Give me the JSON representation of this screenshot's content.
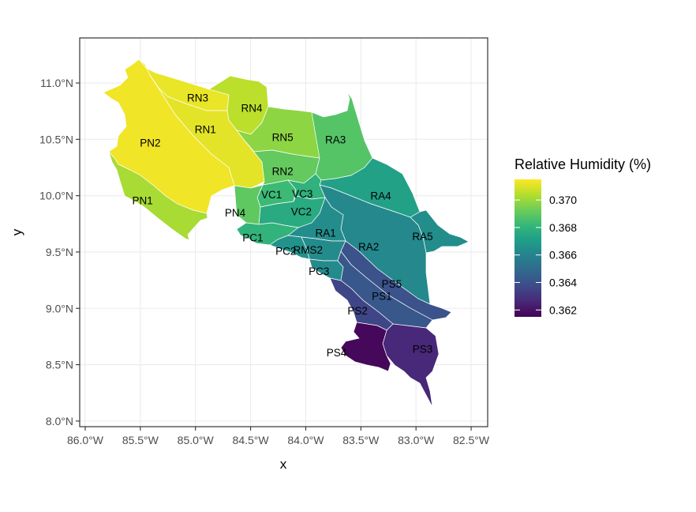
{
  "chart_data": {
    "type": "choropleth-map",
    "xlabel": "x",
    "ylabel": "y",
    "x_ticks": [
      "86.0°W",
      "85.5°W",
      "85.0°W",
      "84.5°W",
      "84.0°W",
      "83.5°W",
      "83.0°W",
      "82.5°W"
    ],
    "y_ticks": [
      "8.0°N",
      "8.5°N",
      "9.0°N",
      "9.5°N",
      "10.0°N",
      "10.5°N",
      "11.0°N"
    ],
    "x_tick_values": [
      -86.0,
      -85.5,
      -85.0,
      -84.5,
      -84.0,
      -83.5,
      -83.0,
      -82.5
    ],
    "y_tick_values": [
      8.0,
      8.5,
      9.0,
      9.5,
      10.0,
      10.5,
      11.0
    ],
    "xlim": [
      -86.05,
      -82.35
    ],
    "ylim": [
      7.95,
      11.4
    ],
    "grid": true,
    "legend": {
      "title": "Relative Humidity (%)",
      "position": "right",
      "range": [
        0.3615,
        0.3715
      ],
      "ticks": [
        "0.362",
        "0.364",
        "0.366",
        "0.368",
        "0.370"
      ],
      "tick_values": [
        0.362,
        0.364,
        0.366,
        0.368,
        0.37
      ],
      "palette": [
        "#440154",
        "#482878",
        "#3E4A89",
        "#31688E",
        "#26828E",
        "#1F9E89",
        "#35B779",
        "#6DCD59",
        "#B4DE2C",
        "#FDE725"
      ]
    },
    "regions": [
      {
        "name": "PN1",
        "value": 0.3702,
        "label_lon": -85.48,
        "label_lat": 9.96
      },
      {
        "name": "PN2",
        "value": 0.3713,
        "label_lon": -85.41,
        "label_lat": 10.47
      },
      {
        "name": "RN3",
        "value": 0.3712,
        "label_lon": -84.98,
        "label_lat": 10.87
      },
      {
        "name": "RN1",
        "value": 0.3711,
        "label_lon": -84.91,
        "label_lat": 10.59
      },
      {
        "name": "RN4",
        "value": 0.3705,
        "label_lon": -84.49,
        "label_lat": 10.78
      },
      {
        "name": "RN5",
        "value": 0.3698,
        "label_lon": -84.21,
        "label_lat": 10.52
      },
      {
        "name": "RN2",
        "value": 0.3691,
        "label_lon": -84.21,
        "label_lat": 10.22
      },
      {
        "name": "RA3",
        "value": 0.3688,
        "label_lon": -83.73,
        "label_lat": 10.5
      },
      {
        "name": "RA4",
        "value": 0.3672,
        "label_lon": -83.32,
        "label_lat": 10.0
      },
      {
        "name": "RA5",
        "value": 0.3664,
        "label_lon": -82.94,
        "label_lat": 9.64
      },
      {
        "name": "RA2",
        "value": 0.3662,
        "label_lon": -83.43,
        "label_lat": 9.55
      },
      {
        "name": "RA1",
        "value": 0.3664,
        "label_lon": -83.82,
        "label_lat": 9.67
      },
      {
        "name": "VC1",
        "value": 0.3683,
        "label_lon": -84.31,
        "label_lat": 10.01
      },
      {
        "name": "VC3",
        "value": 0.3679,
        "label_lon": -84.03,
        "label_lat": 10.02
      },
      {
        "name": "VC2",
        "value": 0.3676,
        "label_lon": -84.04,
        "label_lat": 9.86
      },
      {
        "name": "PN4",
        "value": 0.369,
        "label_lon": -84.64,
        "label_lat": 9.85
      },
      {
        "name": "PC1",
        "value": 0.368,
        "label_lon": -84.48,
        "label_lat": 9.63
      },
      {
        "name": "PC2",
        "value": 0.3666,
        "label_lon": -84.18,
        "label_lat": 9.51
      },
      {
        "name": "RMS2",
        "value": 0.3663,
        "label_lon": -83.98,
        "label_lat": 9.52
      },
      {
        "name": "PC3",
        "value": 0.3663,
        "label_lon": -83.88,
        "label_lat": 9.33
      },
      {
        "name": "PS5",
        "value": 0.364,
        "label_lon": -83.22,
        "label_lat": 9.22
      },
      {
        "name": "PS1",
        "value": 0.3642,
        "label_lon": -83.31,
        "label_lat": 9.11
      },
      {
        "name": "PS2",
        "value": 0.3636,
        "label_lon": -83.53,
        "label_lat": 8.98
      },
      {
        "name": "PS3",
        "value": 0.3626,
        "label_lon": -82.94,
        "label_lat": 8.64
      },
      {
        "name": "PS4",
        "value": 0.3617,
        "label_lon": -83.72,
        "label_lat": 8.61
      }
    ]
  }
}
